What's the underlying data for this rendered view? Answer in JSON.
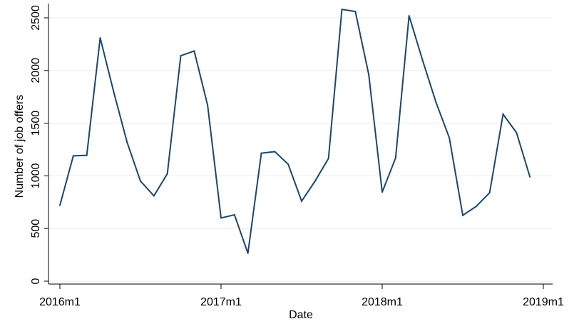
{
  "chart_data": {
    "type": "line",
    "xlabel": "Date",
    "ylabel": "Number of job offers",
    "ylim": [
      0,
      2500
    ],
    "xlim": [
      "2016m1",
      "2019m1"
    ],
    "yticks": [
      0,
      500,
      1000,
      1500,
      2000,
      2500
    ],
    "xticks": [
      "2016m1",
      "2017m1",
      "2018m1",
      "2019m1"
    ],
    "grid": true,
    "legend": "none",
    "line_color": "#1a476f",
    "x": [
      "2016m1",
      "2016m2",
      "2016m3",
      "2016m4",
      "2016m5",
      "2016m6",
      "2016m7",
      "2016m8",
      "2016m9",
      "2016m10",
      "2016m11",
      "2016m12",
      "2017m1",
      "2017m2",
      "2017m3",
      "2017m4",
      "2017m5",
      "2017m6",
      "2017m7",
      "2017m8",
      "2017m9",
      "2017m10",
      "2017m11",
      "2017m12",
      "2018m1",
      "2018m2",
      "2018m3",
      "2018m4",
      "2018m5",
      "2018m6",
      "2018m7",
      "2018m8",
      "2018m9",
      "2018m10",
      "2018m11",
      "2018m12"
    ],
    "series": [
      {
        "values": [
          720,
          1190,
          1195,
          2310,
          1800,
          1320,
          950,
          810,
          1020,
          2140,
          2185,
          1670,
          600,
          630,
          265,
          1215,
          1230,
          1110,
          760,
          950,
          1165,
          2580,
          2560,
          1960,
          845,
          1170,
          2520,
          2100,
          1700,
          1360,
          625,
          710,
          840,
          1585,
          1410,
          990
        ]
      }
    ]
  }
}
